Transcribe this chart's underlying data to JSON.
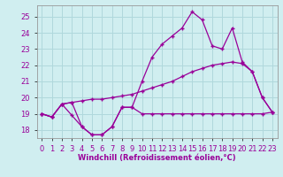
{
  "xlabel": "Windchill (Refroidissement éolien,°C)",
  "bg_color": "#d0eef0",
  "line_color": "#990099",
  "grid_color": "#b0d8dc",
  "xlim": [
    -0.5,
    23.5
  ],
  "ylim": [
    17.5,
    25.7
  ],
  "yticks": [
    18,
    19,
    20,
    21,
    22,
    23,
    24,
    25
  ],
  "xticks": [
    0,
    1,
    2,
    3,
    4,
    5,
    6,
    7,
    8,
    9,
    10,
    11,
    12,
    13,
    14,
    15,
    16,
    17,
    18,
    19,
    20,
    21,
    22,
    23
  ],
  "line1_x": [
    0,
    1,
    2,
    3,
    4,
    5,
    6,
    7,
    8,
    9,
    10,
    11,
    12,
    13,
    14,
    15,
    16,
    17,
    18,
    19,
    20,
    21,
    22,
    23
  ],
  "line1_y": [
    19.0,
    18.8,
    19.6,
    18.9,
    18.2,
    17.7,
    17.7,
    18.2,
    19.4,
    19.4,
    19.0,
    19.0,
    19.0,
    19.0,
    19.0,
    19.0,
    19.0,
    19.0,
    19.0,
    19.0,
    19.0,
    19.0,
    19.0,
    19.1
  ],
  "line2_x": [
    0,
    1,
    2,
    3,
    4,
    5,
    6,
    7,
    8,
    9,
    10,
    11,
    12,
    13,
    14,
    15,
    16,
    17,
    18,
    19,
    20,
    21,
    22,
    23
  ],
  "line2_y": [
    19.0,
    18.8,
    19.6,
    19.7,
    19.8,
    19.9,
    19.9,
    20.0,
    20.1,
    20.2,
    20.4,
    20.6,
    20.8,
    21.0,
    21.3,
    21.6,
    21.8,
    22.0,
    22.1,
    22.2,
    22.1,
    21.6,
    20.0,
    19.1
  ],
  "line3_x": [
    0,
    1,
    2,
    3,
    4,
    5,
    6,
    7,
    8,
    9,
    10,
    11,
    12,
    13,
    14,
    15,
    16,
    17,
    18,
    19,
    20,
    21,
    22,
    23
  ],
  "line3_y": [
    19.0,
    18.8,
    19.6,
    19.7,
    18.2,
    17.7,
    17.7,
    18.2,
    19.4,
    19.4,
    21.0,
    22.5,
    23.3,
    23.8,
    24.3,
    25.3,
    24.8,
    23.2,
    23.0,
    24.3,
    22.2,
    21.6,
    20.0,
    19.1
  ],
  "tick_fontsize": 6.0,
  "xlabel_fontsize": 6.0
}
